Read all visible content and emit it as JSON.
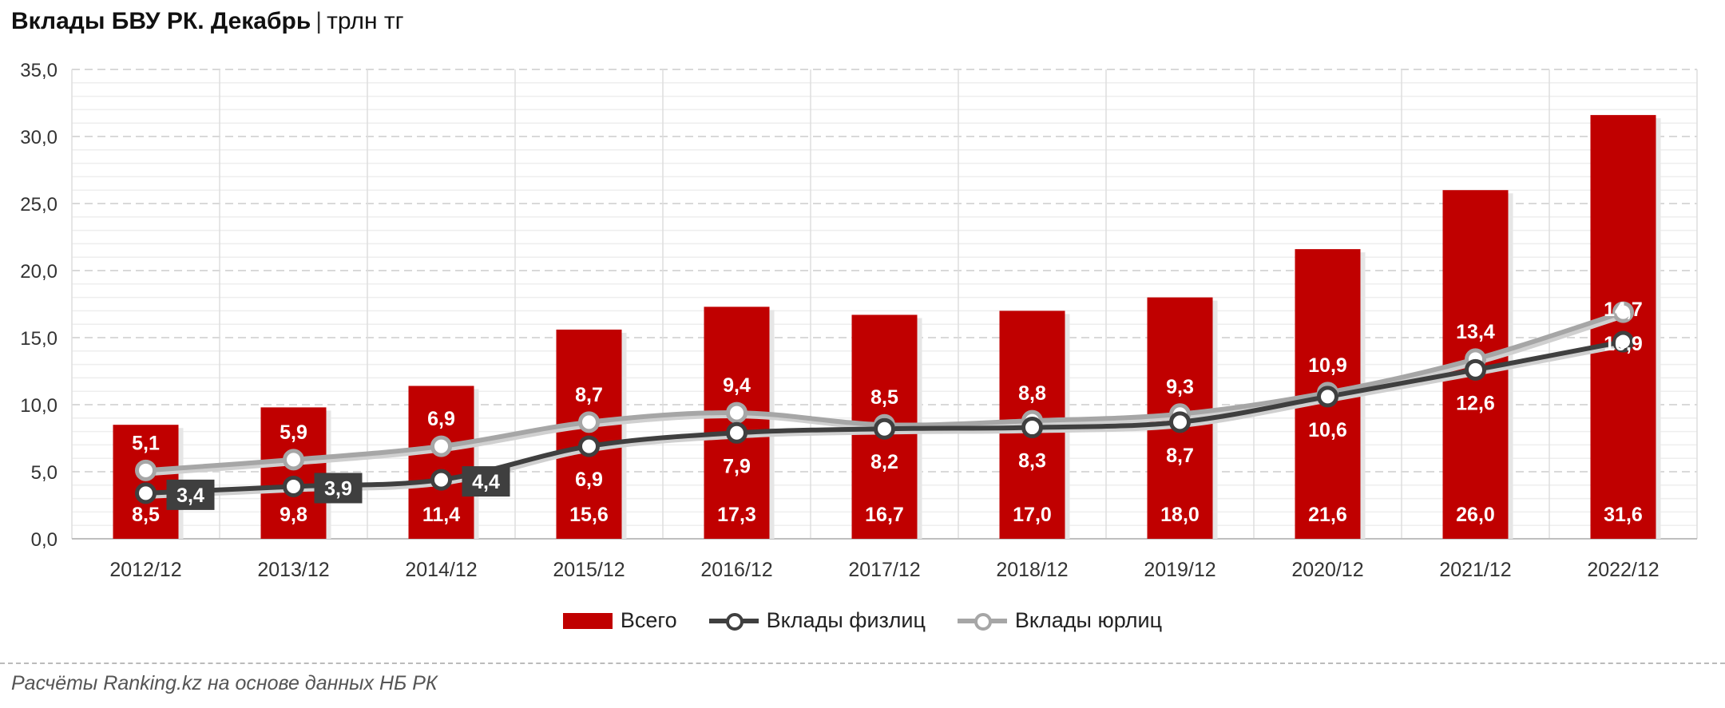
{
  "title": {
    "main": "Вклады БВУ РК. Декабрь",
    "separator": "|",
    "unit": "трлн тг"
  },
  "source": "Расчёты Ranking.kz на основе данных НБ РК",
  "colors": {
    "total": "#c00000",
    "individuals": "#3f3f3f",
    "legal": "#a6a6a6",
    "grid": "#d9d9d9"
  },
  "chart_data": {
    "type": "bar",
    "categories": [
      "2012/12",
      "2013/12",
      "2014/12",
      "2015/12",
      "2016/12",
      "2017/12",
      "2018/12",
      "2019/12",
      "2020/12",
      "2021/12",
      "2022/12"
    ],
    "ylim": [
      0,
      35
    ],
    "yticks": [
      "0,0",
      "5,0",
      "10,0",
      "15,0",
      "20,0",
      "25,0",
      "30,0",
      "35,0"
    ],
    "grid": true,
    "legend_position": "bottom",
    "series": [
      {
        "name": "Всего",
        "type": "bar",
        "values": [
          8.5,
          9.8,
          11.4,
          15.6,
          17.3,
          16.7,
          17.0,
          18.0,
          21.6,
          26.0,
          31.6
        ],
        "labels": [
          "8,5",
          "9,8",
          "11,4",
          "15,6",
          "17,3",
          "16,7",
          "17,0",
          "18,0",
          "21,6",
          "26,0",
          "31,6"
        ]
      },
      {
        "name": "Вклады физлиц",
        "type": "line",
        "values": [
          3.4,
          3.9,
          4.4,
          6.9,
          7.9,
          8.2,
          8.3,
          8.7,
          10.6,
          12.6,
          14.7
        ],
        "labels": [
          "3,4",
          "3,9",
          "4,4",
          "6,9",
          "7,9",
          "8,2",
          "8,3",
          "8,7",
          "10,6",
          "12,6",
          "14,7"
        ]
      },
      {
        "name": "Вклады юрлиц",
        "type": "line",
        "values": [
          5.1,
          5.9,
          6.9,
          8.7,
          9.4,
          8.5,
          8.8,
          9.3,
          10.9,
          13.4,
          16.9
        ],
        "labels": [
          "5,1",
          "5,9",
          "6,9",
          "8,7",
          "9,4",
          "8,5",
          "8,8",
          "9,3",
          "10,9",
          "13,4",
          "16,9"
        ]
      }
    ]
  }
}
